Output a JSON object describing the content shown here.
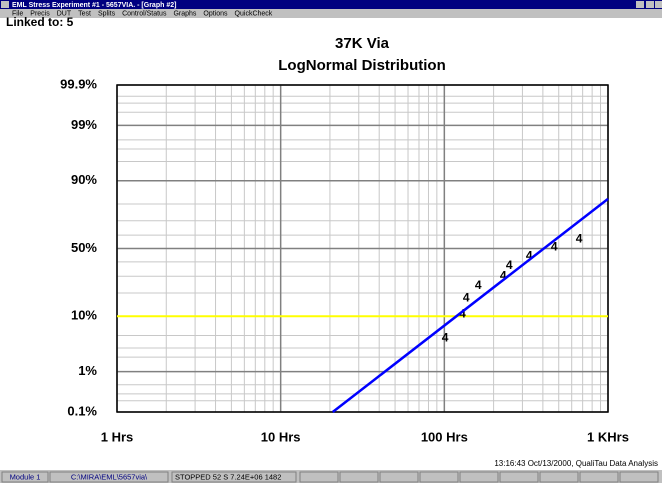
{
  "window": {
    "title": "EML Stress Experiment #1 - 5657VIA. - [Graph #2]",
    "menu": [
      "File",
      "Precis",
      "DUT",
      "Test",
      "Splits",
      "Control/Status",
      "Graphs",
      "Options",
      "QuickCheck"
    ]
  },
  "linked": "Linked to: 5",
  "chart_data": {
    "type": "probability",
    "title": "37K Via",
    "subtitle": "LogNormal Distribution",
    "xscale": "log",
    "yscale": "normal-probability",
    "grid": true,
    "xlim": [
      1,
      1000
    ],
    "ylim": [
      0.1,
      99.9
    ],
    "xticks": [
      {
        "value": 1,
        "label": "1 Hrs"
      },
      {
        "value": 10,
        "label": "10 Hrs"
      },
      {
        "value": 100,
        "label": "100 Hrs"
      },
      {
        "value": 1000,
        "label": "1 KHrs"
      }
    ],
    "yticks": [
      {
        "value": 0.1,
        "label": "0.1%"
      },
      {
        "value": 1,
        "label": "1%"
      },
      {
        "value": 10,
        "label": "10%"
      },
      {
        "value": 50,
        "label": "50%"
      },
      {
        "value": 90,
        "label": "90%"
      },
      {
        "value": 99,
        "label": "99%"
      },
      {
        "value": 99.9,
        "label": "99.9%"
      }
    ],
    "xticks_minor": [
      2,
      3,
      4,
      5,
      6,
      7,
      8,
      9,
      20,
      30,
      40,
      50,
      60,
      70,
      80,
      90,
      200,
      300,
      400,
      500,
      600,
      700,
      800,
      900
    ],
    "yticks_minor": [
      0.2,
      0.3,
      0.5,
      2,
      3,
      5,
      20,
      30,
      40,
      60,
      70,
      80,
      95,
      97,
      98,
      99.5,
      99.7,
      99.8
    ],
    "series": [
      {
        "name": "data",
        "marker": "4",
        "color": "#000000",
        "x": [
          101,
          129,
          136,
          161,
          229,
          249,
          330,
          469,
          666
        ],
        "values": [
          4.5,
          10.7,
          17.4,
          24,
          30,
          37,
          44,
          51,
          57
        ]
      },
      {
        "name": "fit",
        "color": "#0000ff",
        "x": [
          20.8,
          1000
        ],
        "values": [
          0.1,
          82.6
        ]
      }
    ],
    "reference_line": {
      "value": 10,
      "color": "#ffff00"
    }
  },
  "footer": "13:16:43 Oct/13/2000, QualiTau Data Analysis",
  "status": [
    "Module 1",
    "C:\\MIRA\\EML\\5657via\\",
    "STOPPED 52 S 7.24E+06 1482"
  ]
}
